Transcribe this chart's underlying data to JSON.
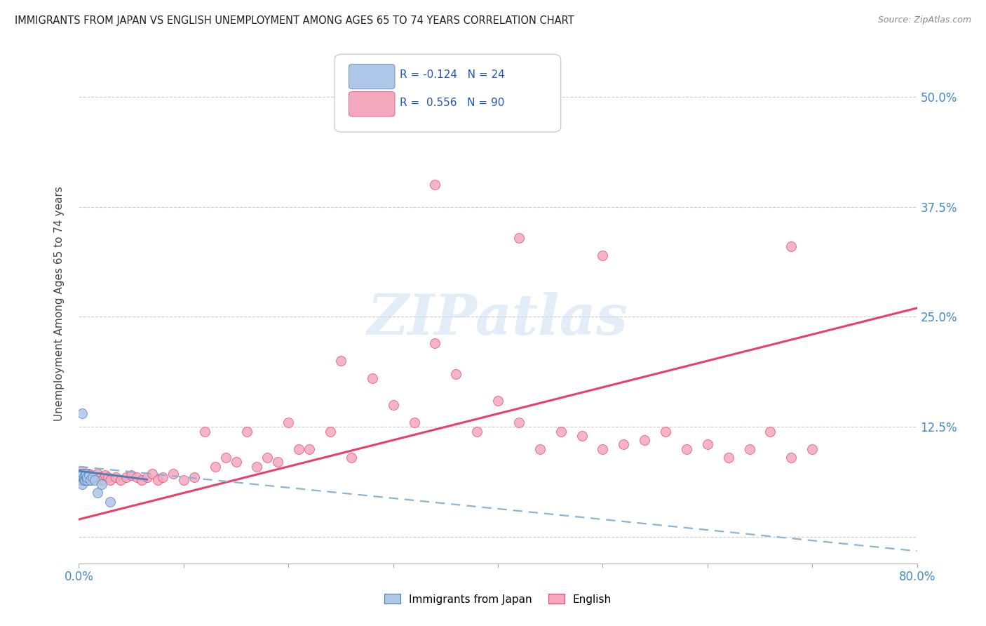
{
  "title": "IMMIGRANTS FROM JAPAN VS ENGLISH UNEMPLOYMENT AMONG AGES 65 TO 74 YEARS CORRELATION CHART",
  "source": "Source: ZipAtlas.com",
  "ylabel": "Unemployment Among Ages 65 to 74 years",
  "xlim": [
    0.0,
    0.8
  ],
  "ylim": [
    -0.03,
    0.56
  ],
  "ytick_vals": [
    0.0,
    0.125,
    0.25,
    0.375,
    0.5
  ],
  "ytick_labels": [
    "",
    "12.5%",
    "25.0%",
    "37.5%",
    "50.0%"
  ],
  "r_blue": -0.124,
  "n_blue": 24,
  "r_pink": 0.556,
  "n_pink": 90,
  "color_blue": "#aec6e8",
  "color_pink": "#f4a8be",
  "line_blue_solid": "#4a7fb5",
  "line_pink_solid": "#e8406a",
  "line_blue_dashed": "#88b4d8",
  "watermark": "ZIPatlas"
}
